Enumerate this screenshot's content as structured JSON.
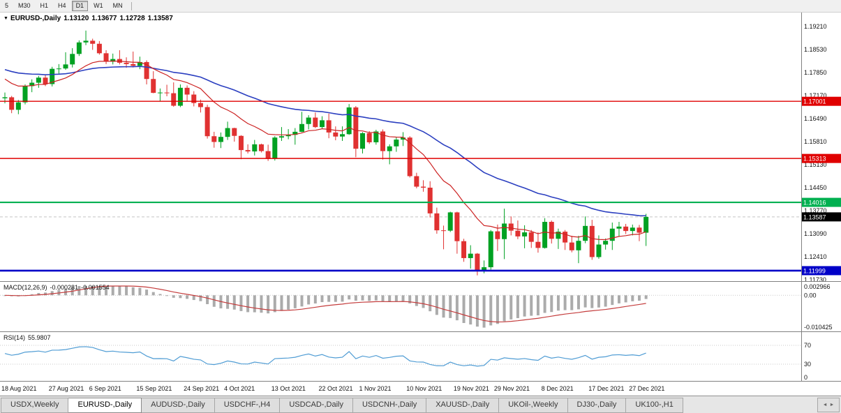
{
  "toolbar": {
    "timeframes": [
      {
        "label": "5",
        "active": false
      },
      {
        "label": "M30",
        "active": false
      },
      {
        "label": "H1",
        "active": false
      },
      {
        "label": "H4",
        "active": false
      },
      {
        "label": "D1",
        "active": true
      },
      {
        "label": "W1",
        "active": false
      },
      {
        "label": "MN",
        "active": false
      }
    ]
  },
  "chart": {
    "dropdown_icon": "▼",
    "title": "EURUSD-,Daily",
    "open": "1.13120",
    "high": "1.13677",
    "low": "1.12728",
    "close": "1.13587"
  },
  "price_axis": {
    "ticks": [
      "1.19210",
      "1.18530",
      "1.17850",
      "1.17170",
      "1.16490",
      "1.15810",
      "1.15130",
      "1.14450",
      "1.13770",
      "1.13090",
      "1.12410",
      "1.11730"
    ],
    "max": 1.1921,
    "min": 1.1173
  },
  "hlines": [
    {
      "price": 1.17001,
      "label": "1.17001",
      "color": "#E00000",
      "width": 1.4
    },
    {
      "price": 1.15313,
      "label": "1.15313",
      "color": "#E00000",
      "width": 1.4
    },
    {
      "price": 1.14016,
      "label": "1.14016",
      "color": "#00B050",
      "width": 2.2
    },
    {
      "price": 1.11999,
      "label": "1.11999",
      "color": "#0000C8",
      "width": 2.6
    }
  ],
  "current_price": {
    "price": 1.13587,
    "label": "1.13587",
    "bg": "#000000"
  },
  "macd_panel": {
    "label": "MACD(12,26,9)",
    "value": "-0.000281",
    "signal": "-0.001554",
    "axis_max": "0.002966",
    "axis_zero": "0.00",
    "axis_min": "-0.010425",
    "max": 0.002966,
    "min": -0.010425
  },
  "rsi_panel": {
    "label": "RSI(14)",
    "value": "55.9807",
    "axis": [
      "70",
      "30",
      "0"
    ],
    "levels": [
      70,
      30
    ]
  },
  "tabs_ui": {
    "scroll_left_icon": "◄",
    "scroll_right_icon": "►"
  },
  "tabs": [
    {
      "label": "USDX,Weekly",
      "active": false
    },
    {
      "label": "EURUSD-,Daily",
      "active": true
    },
    {
      "label": "AUDUSD-,Daily",
      "active": false
    },
    {
      "label": "USDCHF-,H4",
      "active": false
    },
    {
      "label": "USDCAD-,Daily",
      "active": false
    },
    {
      "label": "USDCNH-,Daily",
      "active": false
    },
    {
      "label": "XAUUSD-,Daily",
      "active": false
    },
    {
      "label": "UKOil-,Weekly",
      "active": false
    },
    {
      "label": "DJ30-,Daily",
      "active": false
    },
    {
      "label": "UK100-,H1",
      "active": false
    }
  ],
  "colors": {
    "bull": "#00A122",
    "bear": "#E03131",
    "ma_fast": "#CC2222",
    "ma_slow": "#2B3FC0",
    "macd_hist": "#ABABAB",
    "macd_signal": "#C43C3C",
    "rsi": "#4F9CD4",
    "axis_text": "#111111",
    "grid": "#C8C8C8",
    "pane_border": "#808080"
  },
  "chart_data": {
    "type": "candlestick",
    "symbol": "EURUSD-",
    "timeframe": "Daily",
    "ylim": [
      1.1173,
      1.1921
    ],
    "x_labels": [
      {
        "label": "18 Aug 2021",
        "index": 0
      },
      {
        "label": "27 Aug 2021",
        "index": 7
      },
      {
        "label": "6 Sep 2021",
        "index": 13
      },
      {
        "label": "15 Sep 2021",
        "index": 20
      },
      {
        "label": "24 Sep 2021",
        "index": 27
      },
      {
        "label": "4 Oct 2021",
        "index": 33
      },
      {
        "label": "13 Oct 2021",
        "index": 40
      },
      {
        "label": "22 Oct 2021",
        "index": 47
      },
      {
        "label": "1 Nov 2021",
        "index": 53
      },
      {
        "label": "10 Nov 2021",
        "index": 60
      },
      {
        "label": "19 Nov 2021",
        "index": 67
      },
      {
        "label": "29 Nov 2021",
        "index": 73
      },
      {
        "label": "8 Dec 2021",
        "index": 80
      },
      {
        "label": "17 Dec 2021",
        "index": 87
      },
      {
        "label": "27 Dec 2021",
        "index": 93
      }
    ],
    "candles": [
      [
        1.1709,
        1.1726,
        1.1694,
        1.1712
      ],
      [
        1.1712,
        1.1716,
        1.1665,
        1.1675
      ],
      [
        1.1675,
        1.1704,
        1.1662,
        1.1697
      ],
      [
        1.1697,
        1.175,
        1.1691,
        1.1745
      ],
      [
        1.1745,
        1.1765,
        1.1727,
        1.1755
      ],
      [
        1.1755,
        1.1775,
        1.174,
        1.177
      ],
      [
        1.177,
        1.1779,
        1.1745,
        1.1751
      ],
      [
        1.1751,
        1.1802,
        1.1744,
        1.1796
      ],
      [
        1.1796,
        1.181,
        1.1782,
        1.1797
      ],
      [
        1.1797,
        1.1845,
        1.1793,
        1.1809
      ],
      [
        1.1809,
        1.1857,
        1.18,
        1.184
      ],
      [
        1.184,
        1.188,
        1.1834,
        1.1874
      ],
      [
        1.1874,
        1.1909,
        1.1866,
        1.1879
      ],
      [
        1.1879,
        1.1885,
        1.1852,
        1.187
      ],
      [
        1.187,
        1.1878,
        1.1838,
        1.1842
      ],
      [
        1.1842,
        1.1851,
        1.181,
        1.1817
      ],
      [
        1.1817,
        1.1841,
        1.1809,
        1.1825
      ],
      [
        1.1825,
        1.1851,
        1.1809,
        1.1814
      ],
      [
        1.1814,
        1.183,
        1.1799,
        1.181
      ],
      [
        1.181,
        1.1847,
        1.18,
        1.1805
      ],
      [
        1.1805,
        1.1832,
        1.1795,
        1.1816
      ],
      [
        1.1816,
        1.1821,
        1.175,
        1.1766
      ],
      [
        1.1766,
        1.1789,
        1.1724,
        1.1725
      ],
      [
        1.1725,
        1.1738,
        1.17,
        1.1726
      ],
      [
        1.1726,
        1.1749,
        1.1715,
        1.1724
      ],
      [
        1.1724,
        1.1756,
        1.1684,
        1.1687
      ],
      [
        1.1687,
        1.175,
        1.1683,
        1.174
      ],
      [
        1.174,
        1.1747,
        1.1701,
        1.172
      ],
      [
        1.172,
        1.173,
        1.1685,
        1.1695
      ],
      [
        1.1695,
        1.1705,
        1.1667,
        1.1683
      ],
      [
        1.1683,
        1.169,
        1.159,
        1.1597
      ],
      [
        1.1597,
        1.161,
        1.1563,
        1.158
      ],
      [
        1.158,
        1.1608,
        1.1562,
        1.1595
      ],
      [
        1.1595,
        1.164,
        1.1586,
        1.1621
      ],
      [
        1.1621,
        1.1622,
        1.1581,
        1.1598
      ],
      [
        1.1598,
        1.16,
        1.1529,
        1.1556
      ],
      [
        1.1556,
        1.1573,
        1.1546,
        1.1552
      ],
      [
        1.1552,
        1.1586,
        1.154,
        1.1573
      ],
      [
        1.1573,
        1.1575,
        1.1549,
        1.1553
      ],
      [
        1.1553,
        1.1572,
        1.1524,
        1.153
      ],
      [
        1.153,
        1.1597,
        1.1525,
        1.1593
      ],
      [
        1.1593,
        1.1624,
        1.1583,
        1.1597
      ],
      [
        1.1597,
        1.1618,
        1.1588,
        1.1601
      ],
      [
        1.1601,
        1.1621,
        1.1572,
        1.161
      ],
      [
        1.161,
        1.1669,
        1.1609,
        1.1633
      ],
      [
        1.1633,
        1.1659,
        1.1617,
        1.1652
      ],
      [
        1.1652,
        1.1667,
        1.1621,
        1.1624
      ],
      [
        1.1624,
        1.1656,
        1.162,
        1.1644
      ],
      [
        1.1644,
        1.1664,
        1.1591,
        1.1608
      ],
      [
        1.1608,
        1.1626,
        1.1585,
        1.1596
      ],
      [
        1.1596,
        1.1626,
        1.1583,
        1.1603
      ],
      [
        1.1603,
        1.1692,
        1.1601,
        1.1682
      ],
      [
        1.1682,
        1.1686,
        1.1535,
        1.156
      ],
      [
        1.156,
        1.1609,
        1.1546,
        1.1606
      ],
      [
        1.1606,
        1.1612,
        1.1574,
        1.1579
      ],
      [
        1.1579,
        1.1616,
        1.1572,
        1.1611
      ],
      [
        1.1611,
        1.1617,
        1.1528,
        1.1553
      ],
      [
        1.1553,
        1.1573,
        1.1514,
        1.1567
      ],
      [
        1.1567,
        1.1595,
        1.1551,
        1.1587
      ],
      [
        1.1587,
        1.1609,
        1.1568,
        1.1593
      ],
      [
        1.1593,
        1.1597,
        1.1475,
        1.1479
      ],
      [
        1.1479,
        1.1489,
        1.1443,
        1.1448
      ],
      [
        1.1448,
        1.1467,
        1.1433,
        1.1445
      ],
      [
        1.1445,
        1.1464,
        1.1357,
        1.1369
      ],
      [
        1.1369,
        1.1386,
        1.1309,
        1.1319
      ],
      [
        1.1319,
        1.1333,
        1.1263,
        1.1318
      ],
      [
        1.1318,
        1.1374,
        1.1314,
        1.1372
      ],
      [
        1.1372,
        1.1374,
        1.125,
        1.1287
      ],
      [
        1.1287,
        1.1294,
        1.1226,
        1.1237
      ],
      [
        1.1237,
        1.1275,
        1.1206,
        1.125
      ],
      [
        1.125,
        1.1252,
        1.1186,
        1.1199
      ],
      [
        1.1199,
        1.123,
        1.1192,
        1.121
      ],
      [
        1.121,
        1.132,
        1.1203,
        1.1316
      ],
      [
        1.1316,
        1.1336,
        1.1258,
        1.1293
      ],
      [
        1.1293,
        1.1383,
        1.1234,
        1.1339
      ],
      [
        1.1339,
        1.136,
        1.1304,
        1.1318
      ],
      [
        1.1318,
        1.1348,
        1.1293,
        1.1301
      ],
      [
        1.1301,
        1.1334,
        1.1266,
        1.1313
      ],
      [
        1.1313,
        1.132,
        1.1267,
        1.1285
      ],
      [
        1.1285,
        1.1313,
        1.1253,
        1.1267
      ],
      [
        1.1267,
        1.1355,
        1.1265,
        1.1344
      ],
      [
        1.1344,
        1.1348,
        1.128,
        1.1294
      ],
      [
        1.1294,
        1.1324,
        1.1264,
        1.1315
      ],
      [
        1.1315,
        1.132,
        1.1261,
        1.1283
      ],
      [
        1.1283,
        1.1303,
        1.1254,
        1.126
      ],
      [
        1.126,
        1.1303,
        1.1222,
        1.1288
      ],
      [
        1.1288,
        1.136,
        1.1281,
        1.1332
      ],
      [
        1.1332,
        1.135,
        1.1232,
        1.124
      ],
      [
        1.124,
        1.1304,
        1.1235,
        1.1277
      ],
      [
        1.1277,
        1.1295,
        1.1262,
        1.1288
      ],
      [
        1.1288,
        1.1342,
        1.1261,
        1.1324
      ],
      [
        1.1324,
        1.1344,
        1.1301,
        1.133
      ],
      [
        1.133,
        1.1338,
        1.1308,
        1.1317
      ],
      [
        1.1317,
        1.1336,
        1.1304,
        1.1327
      ],
      [
        1.1327,
        1.1335,
        1.1287,
        1.1312
      ],
      [
        1.1312,
        1.13677,
        1.12728,
        1.13587
      ]
    ]
  }
}
